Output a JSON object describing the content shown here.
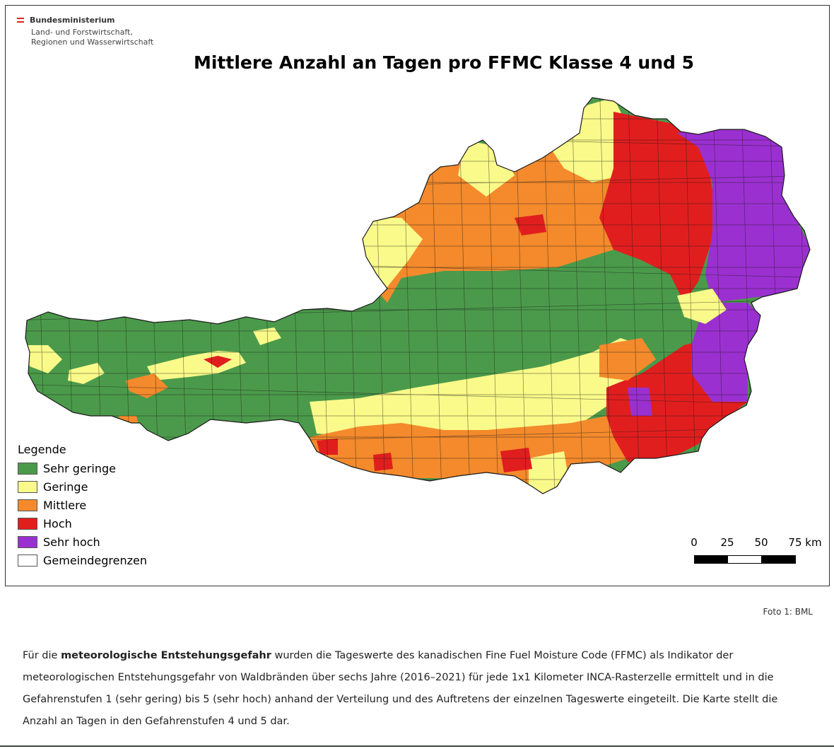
{
  "ministry": {
    "name": "Bundesministerium",
    "line2": "Land- und Forstwirtschaft,",
    "line3": "Regionen und Wasserwirtschaft"
  },
  "map": {
    "title": "Mittlere Anzahl an Tagen pro FFMC Klasse 4 und 5",
    "legend": {
      "title": "Legende",
      "items": [
        {
          "label": "Sehr geringe",
          "color": "#4b9a4b"
        },
        {
          "label": "Geringe",
          "color": "#fafa8a"
        },
        {
          "label": "Mittlere",
          "color": "#f48a2c"
        },
        {
          "label": "Hoch",
          "color": "#e11e1e"
        },
        {
          "label": "Sehr hoch",
          "color": "#9b30d0"
        },
        {
          "label": "Gemeindegrenzen",
          "color": "#ffffff"
        }
      ]
    },
    "scalebar": {
      "labels": [
        "0",
        "25",
        "50",
        "75 km"
      ]
    }
  },
  "photo_credit": "Foto 1: BML",
  "caption": {
    "before": "Für die ",
    "bold": "meteorologische Entstehungsgefahr",
    "after": " wurden die Tageswerte des kanadischen Fine Fuel Moisture Code (FFMC) als Indikator der meteorologischen Entstehungsgefahr von Waldbränden über sechs Jahre (2016–2021) für jede 1x1 Kilometer INCA-Rasterzelle ermittelt und in die Gefahrenstufen 1 (sehr gering) bis 5 (sehr hoch) anhand der Verteilung und des Auftretens der einzelnen Tageswerte eingeteilt. Die Karte stellt die Anzahl an Tagen in den Gefahrenstufen 4 und 5 dar."
  }
}
